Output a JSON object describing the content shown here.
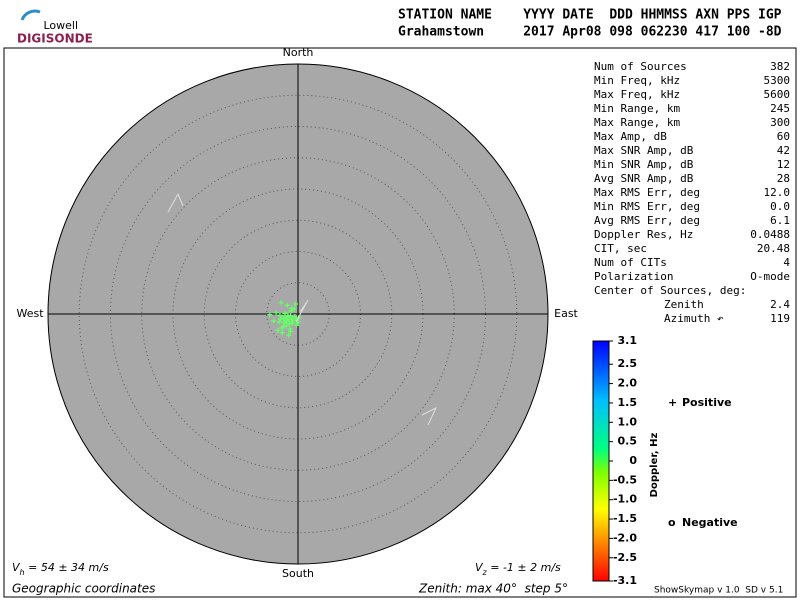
{
  "logo": {
    "line1": "Lowell",
    "line2": "DIGISONDE"
  },
  "header": {
    "labels": "STATION NAME    YYYY DATE  DDD HHMMSS AXN PPS IGP",
    "values": "Grahamstown     2017 Apr08 098 062230 417 100 -8D"
  },
  "chart_data": {
    "type": "skymap",
    "directions": {
      "north": "North",
      "south": "South",
      "east": "East",
      "west": "West"
    },
    "rlim": [
      0,
      40
    ],
    "rings": [
      5,
      10,
      15,
      20,
      25,
      30,
      35
    ],
    "point_color": "#66ff66",
    "x": [
      -1.8,
      -1.5,
      -1.2,
      -2.0,
      -2.4,
      -1.0,
      -0.8,
      -1.6,
      -2.2,
      -1.4,
      -0.5,
      -2.8,
      -3.5,
      -1.9,
      -1.1,
      -0.3,
      -2.6,
      -1.7,
      -0.9,
      -2.1,
      -1.3,
      -3.0,
      -2.5,
      -0.6,
      -1.5,
      0.1,
      -3.9,
      -2.7,
      -0.2,
      -1.2,
      -4.5,
      -2.3,
      -1.0,
      -3.2,
      -0.4,
      -1.8,
      -2.9,
      0.0,
      -1.6,
      -2.0
    ],
    "y": [
      -0.6,
      -0.9,
      -0.3,
      -1.0,
      -0.5,
      -1.2,
      -0.7,
      -0.2,
      -1.4,
      -1.6,
      -0.4,
      -0.8,
      0.2,
      -1.9,
      0.5,
      -1.0,
      -2.2,
      1.4,
      -1.5,
      0.1,
      -2.4,
      -1.3,
      -3.0,
      0.8,
      -3.4,
      -0.6,
      -1.1,
      1.8,
      -1.8,
      -2.8,
      -0.1,
      -2.0,
      0.9,
      -2.6,
      1.6,
      -1.1,
      -0.2,
      -1.3,
      -0.4,
      -0.9
    ],
    "colorbar": {
      "title": "Doppler, Hz",
      "lim": [
        -3.1,
        3.1
      ],
      "ticks": [
        3.1,
        2.5,
        {
          "value": 2,
          "label": "2.0"
        },
        1.5,
        {
          "value": 1,
          "label": "1.0"
        },
        0.5,
        0,
        -0.5,
        {
          "value": -1,
          "label": "-1.0"
        },
        -1.5,
        {
          "value": -2,
          "label": "-2.0"
        },
        -2.5,
        -3.1
      ]
    },
    "legend": {
      "positive": {
        "symbol": "+",
        "label": "Positive",
        "color": "#0000cc"
      },
      "negative": {
        "symbol": "o",
        "label": "Negative",
        "color": "#cc0000"
      }
    }
  },
  "stats": [
    {
      "label": "Num of Sources",
      "value": "382"
    },
    {
      "label": "Min Freq, kHz",
      "value": "5300"
    },
    {
      "label": "Max Freq, kHz",
      "value": "5600"
    },
    {
      "label": "Min Range, km",
      "value": "245"
    },
    {
      "label": "Max Range, km",
      "value": "300"
    },
    {
      "label": "Max Amp, dB",
      "value": "60"
    },
    {
      "label": "Max SNR Amp, dB",
      "value": "42"
    },
    {
      "label": "Min SNR Amp, dB",
      "value": "12"
    },
    {
      "label": "Avg SNR Amp, dB",
      "value": "28"
    },
    {
      "label": "Max RMS Err, deg",
      "value": "12.0"
    },
    {
      "label": "Min RMS Err, deg",
      "value": "0.0"
    },
    {
      "label": "Avg RMS Err, deg",
      "value": "6.1"
    },
    {
      "label": "Doppler Res, Hz",
      "value": "0.0488"
    },
    {
      "label": "CIT, sec",
      "value": "20.48"
    },
    {
      "label": "Num of CITs",
      "value": "4"
    },
    {
      "label": "Polarization",
      "value": "O-mode"
    }
  ],
  "center": {
    "title": "Center of Sources, deg:",
    "zenith": {
      "label": "Zenith",
      "value": "2.4"
    },
    "azimuth": {
      "label": "Azimuth ↶",
      "value": "119"
    }
  },
  "velocity": {
    "horizontal": {
      "symbol": "V",
      "sub": "h",
      "text": " = 54 ± 34 m/s"
    },
    "vertical": {
      "symbol": "V",
      "sub": "z",
      "text": " = -1 ± 2 m/s"
    }
  },
  "footer": {
    "coords": "Geographic coordinates",
    "zenith": "Zenith: max 40°  step 5°",
    "version": "ShowSkymap v 1.0  SD v 5.1"
  }
}
